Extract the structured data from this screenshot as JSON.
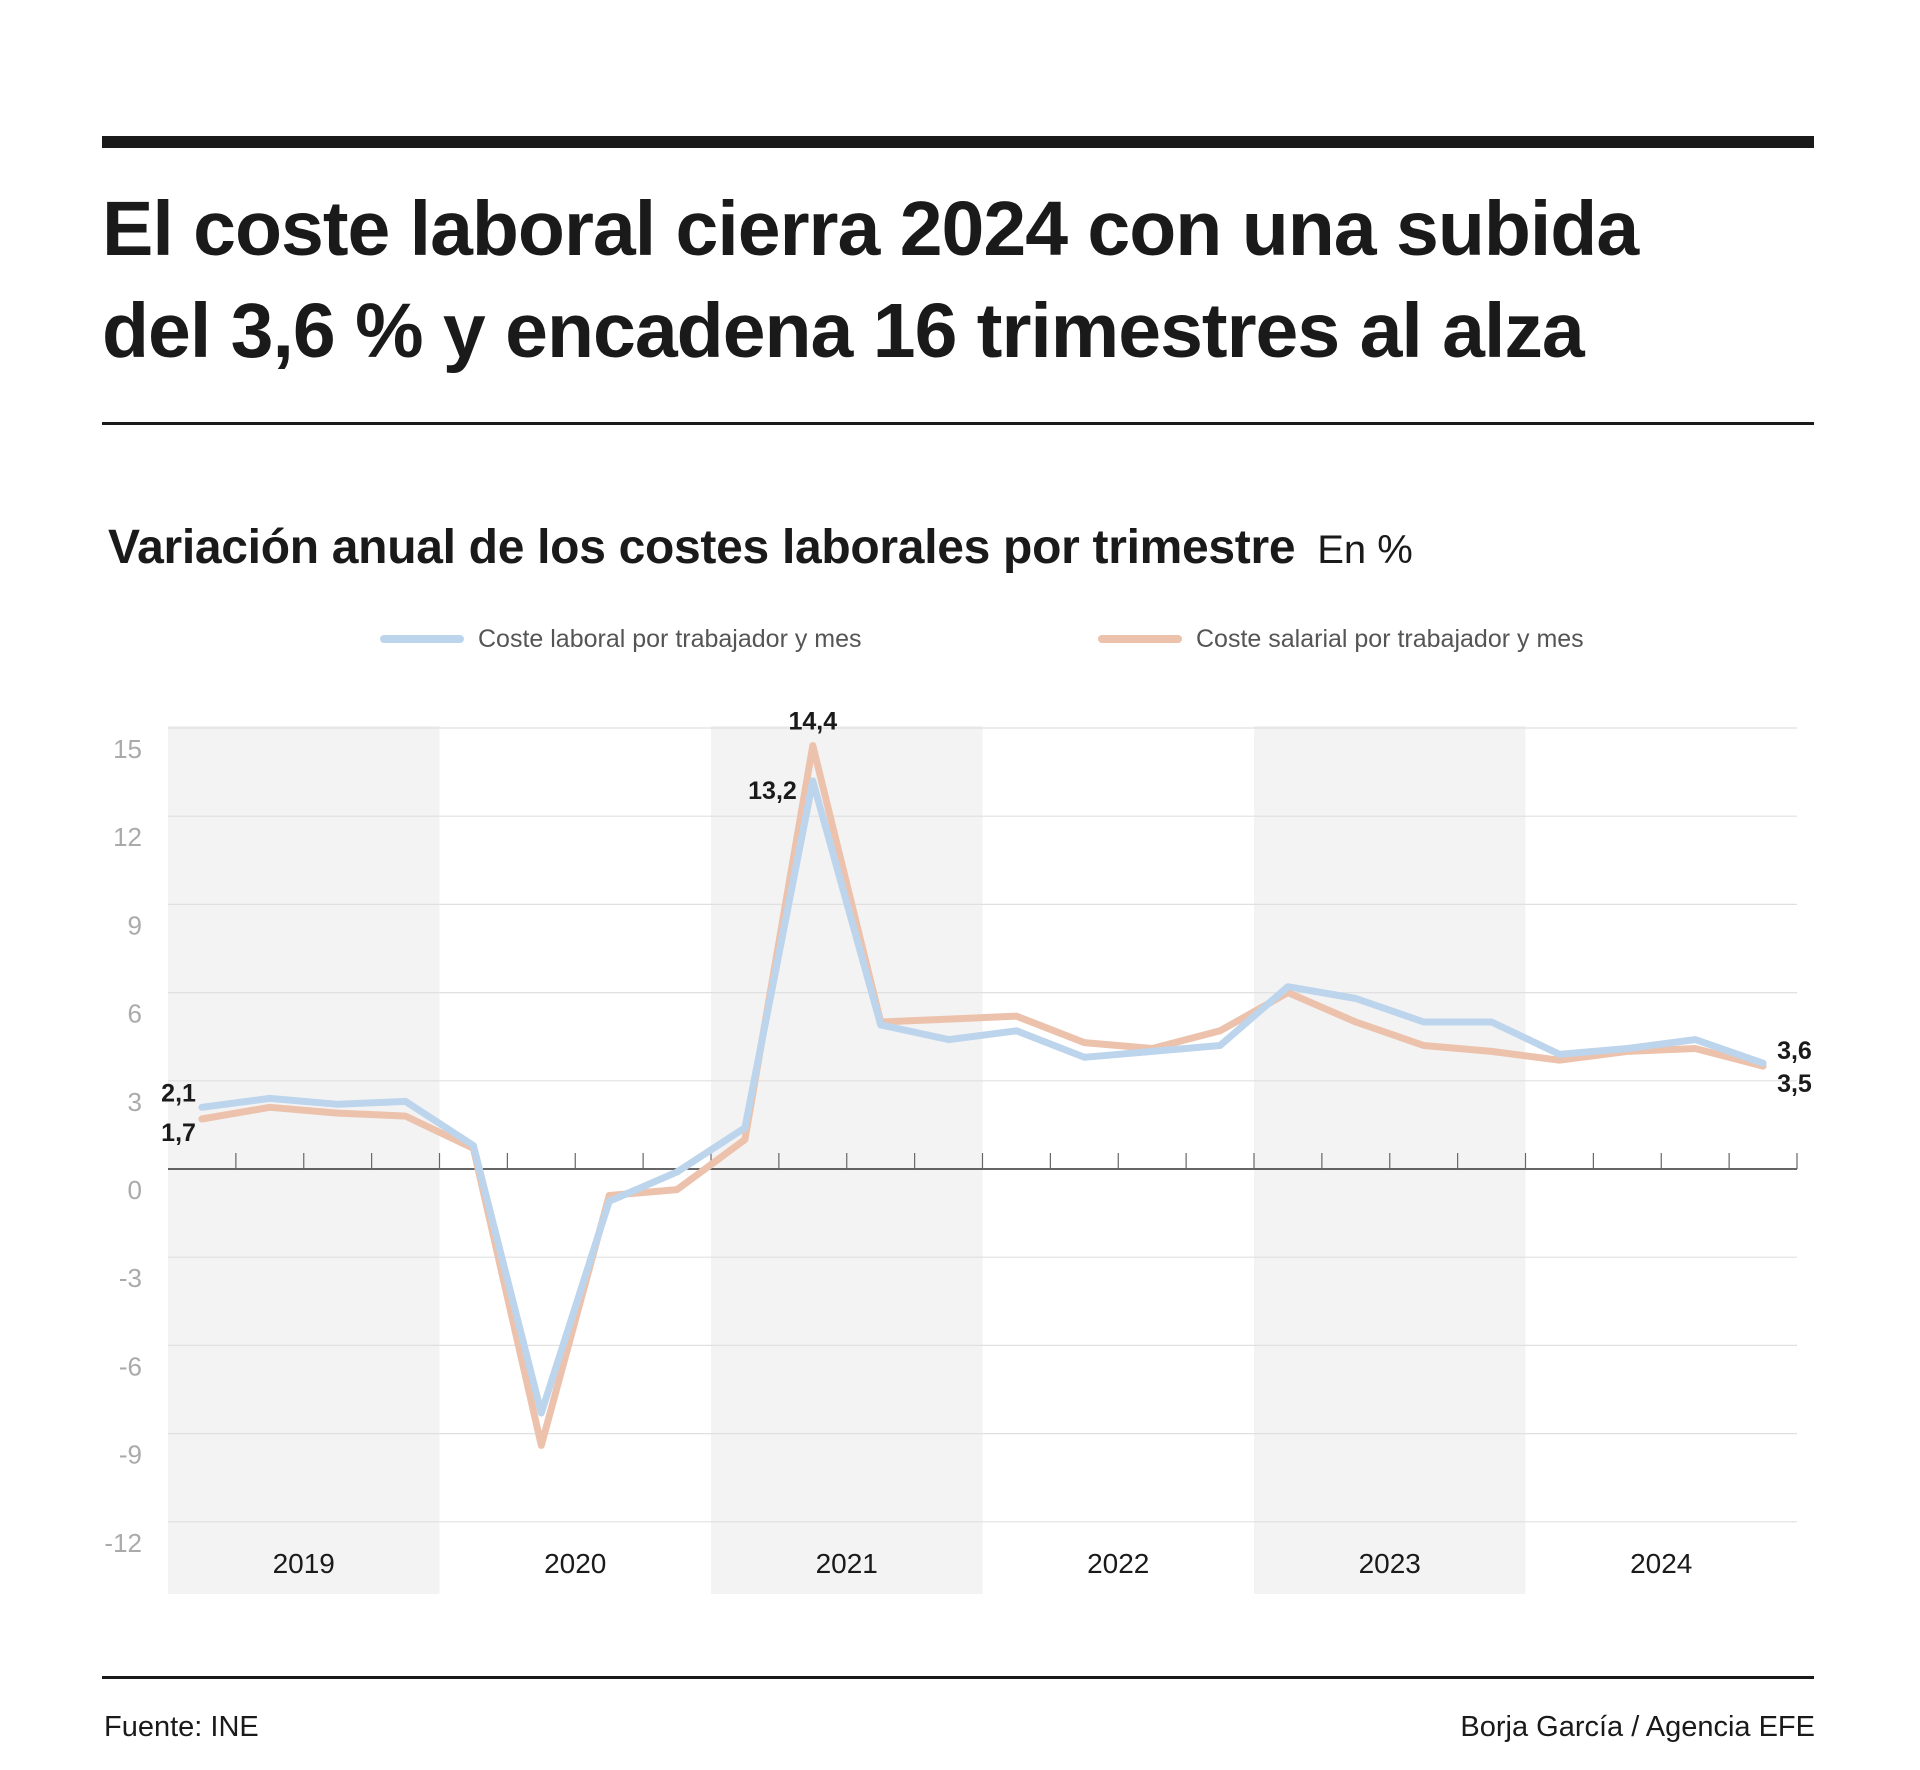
{
  "header": {
    "title_line1": "El coste laboral cierra 2024 con una subida",
    "title_line2": "del 3,6 % y encadena 16 trimestres al alza"
  },
  "chart_data": {
    "type": "line",
    "title": "Variación anual de los costes laborales por trimestre",
    "unit": "En %",
    "x": [
      "2019-T1",
      "2019-T2",
      "2019-T3",
      "2019-T4",
      "2020-T1",
      "2020-T2",
      "2020-T3",
      "2020-T4",
      "2021-T1",
      "2021-T2",
      "2021-T3",
      "2021-T4",
      "2022-T1",
      "2022-T2",
      "2022-T3",
      "2022-T4",
      "2023-T1",
      "2023-T2",
      "2023-T3",
      "2023-T4",
      "2024-T1",
      "2024-T2",
      "2024-T3",
      "2024-T4"
    ],
    "year_labels": [
      "2019",
      "2020",
      "2021",
      "2022",
      "2023",
      "2024"
    ],
    "shaded_years": [
      "2019",
      "2021",
      "2023"
    ],
    "ylim": [
      -12,
      15
    ],
    "yticks": [
      "15",
      "12",
      "9",
      "6",
      "3",
      "0",
      "-3",
      "-6",
      "-9",
      "-12"
    ],
    "grid": true,
    "legend_position": "top",
    "series": [
      {
        "name": "Coste laboral por trabajador y mes",
        "color": "#bdd5ec",
        "values": [
          2.1,
          2.4,
          2.2,
          2.3,
          0.8,
          -8.3,
          -1.1,
          -0.1,
          1.4,
          13.2,
          4.9,
          4.4,
          4.7,
          3.8,
          4.0,
          4.2,
          6.2,
          5.8,
          5.0,
          5.0,
          3.9,
          4.1,
          4.4,
          3.6
        ]
      },
      {
        "name": "Coste salarial por trabajador y mes",
        "color": "#ecc2ac",
        "values": [
          1.7,
          2.1,
          1.9,
          1.8,
          0.7,
          -9.4,
          -0.9,
          -0.7,
          1.0,
          14.4,
          5.0,
          5.1,
          5.2,
          4.3,
          4.1,
          4.7,
          6.0,
          5.0,
          4.2,
          4.0,
          3.7,
          4.0,
          4.1,
          3.5
        ]
      }
    ],
    "annotations": [
      {
        "text": "2,1",
        "series": 0,
        "index": 0
      },
      {
        "text": "1,7",
        "series": 1,
        "index": 0
      },
      {
        "text": "13,2",
        "series": 0,
        "index": 9
      },
      {
        "text": "14,4",
        "series": 1,
        "index": 9
      },
      {
        "text": "3,6",
        "series": 0,
        "index": 23
      },
      {
        "text": "3,5",
        "series": 1,
        "index": 23
      }
    ]
  },
  "footer": {
    "source": "Fuente: INE",
    "credit": "Borja García / Agencia EFE"
  }
}
